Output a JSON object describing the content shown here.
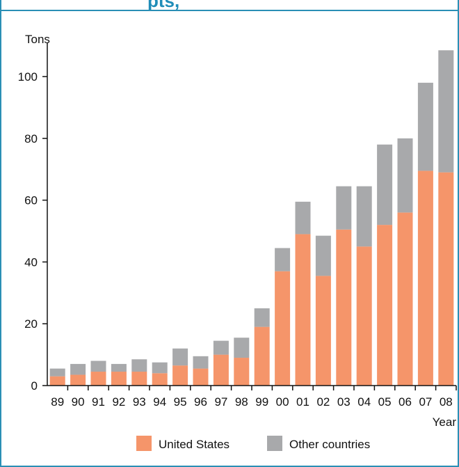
{
  "header": {
    "title_fragment": "pts,"
  },
  "colors": {
    "us": "#f5956a",
    "other": "#a8a9ab",
    "frame": "#2a8fb5",
    "title": "#1f8db8"
  },
  "chart_data": {
    "type": "bar",
    "stacked": true,
    "title": "",
    "xlabel": "Year",
    "ylabel": "Tons",
    "ylim": [
      0,
      110
    ],
    "yticks": [
      0,
      20,
      40,
      60,
      80,
      100
    ],
    "categories": [
      "89",
      "90",
      "91",
      "92",
      "93",
      "94",
      "95",
      "96",
      "97",
      "98",
      "99",
      "00",
      "01",
      "02",
      "03",
      "04",
      "05",
      "06",
      "07",
      "08"
    ],
    "series": [
      {
        "name": "United States",
        "color": "#f5956a",
        "values": [
          3,
          3.5,
          4.5,
          4.5,
          4.5,
          4,
          6.5,
          5.5,
          10,
          9,
          19,
          37,
          49,
          35.5,
          50.5,
          45,
          52,
          56,
          69.5,
          69
        ]
      },
      {
        "name": "Other countries",
        "color": "#a8a9ab",
        "values": [
          2.5,
          3.5,
          3.5,
          2.5,
          4,
          3.5,
          5.5,
          4,
          4.5,
          6.5,
          6,
          7.5,
          10.5,
          13,
          14,
          19.5,
          26,
          24,
          28.5,
          39.5
        ]
      }
    ],
    "legend": "bottom"
  }
}
